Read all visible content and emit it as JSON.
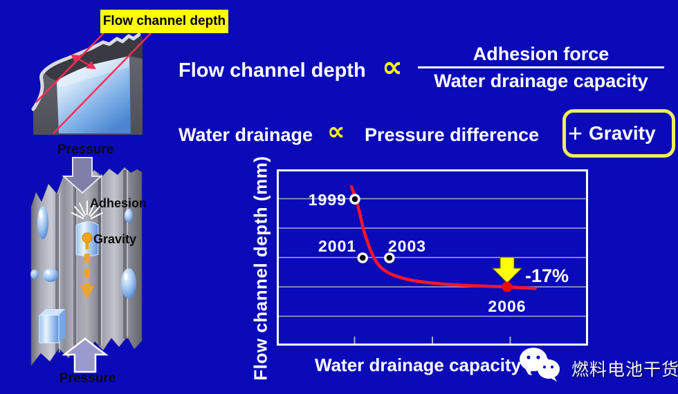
{
  "slide": {
    "callout_label": "Flow channel depth",
    "formula1": {
      "lhs": "Flow channel depth",
      "prop": "∝",
      "numerator": "Adhesion force",
      "denominator": "Water drainage capacity"
    },
    "formula2": {
      "lhs": "Water drainage",
      "prop": "∝",
      "rhs": "Pressure difference",
      "plus": "+",
      "boxed": "Gravity"
    },
    "left_figure": {
      "pressure_top": "Pressure",
      "adhesion": "Adhesion",
      "gravity": "Gravity",
      "pressure_bottom": "Pressure"
    },
    "watermark": {
      "text": "燃料电池干货"
    },
    "colors": {
      "background": "#0a0ab8",
      "accent_yellow": "#ffff00",
      "box_border": "#efef5e",
      "grid": "#a9a9d6",
      "curve_red": "#ff1428",
      "callout_red": "#ff2d55"
    }
  },
  "chart_data": {
    "type": "scatter",
    "title": "",
    "xlabel": "Water drainage capacity (N)",
    "ylabel": "Flow channel depth (mm)",
    "grid": {
      "rows": 6,
      "x_ticks": [
        0.25,
        0.5,
        0.75
      ]
    },
    "points": [
      {
        "label": "1999",
        "x": 0.251,
        "y": 0.169,
        "color": "#000000",
        "ring": "#ffffff",
        "label_anchor": "left"
      },
      {
        "label": "2001",
        "x": 0.276,
        "y": 0.502,
        "color": "#000000",
        "ring": "#ffffff",
        "label_anchor": "above-left"
      },
      {
        "label": "2003",
        "x": 0.362,
        "y": 0.502,
        "color": "#000000",
        "ring": "#ffffff",
        "label_anchor": "above-right"
      },
      {
        "label": "2006",
        "x": 0.74,
        "y": 0.667,
        "color": "#ff0000",
        "label_anchor": "below"
      }
    ],
    "curve": {
      "color": "#ff1428",
      "width": 4.5,
      "points": [
        [
          0.24,
          0.098
        ],
        [
          0.252,
          0.155
        ],
        [
          0.264,
          0.23
        ],
        [
          0.278,
          0.335
        ],
        [
          0.295,
          0.43
        ],
        [
          0.315,
          0.51
        ],
        [
          0.34,
          0.565
        ],
        [
          0.375,
          0.6
        ],
        [
          0.43,
          0.628
        ],
        [
          0.5,
          0.645
        ],
        [
          0.58,
          0.656
        ],
        [
          0.66,
          0.662
        ],
        [
          0.74,
          0.667
        ],
        [
          0.83,
          0.676
        ]
      ]
    },
    "annotation": {
      "text": "-17%",
      "at_point": "2006",
      "arrow_color": "#ffff00",
      "text_color": "#ffffff"
    }
  }
}
